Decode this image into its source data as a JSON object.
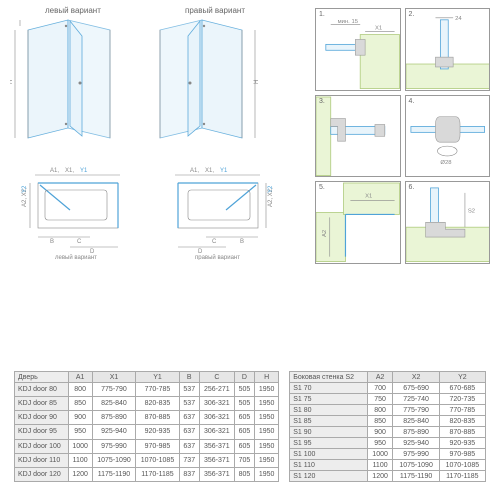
{
  "labels": {
    "left_variant": "левый вариант",
    "right_variant": "правый вариант",
    "dim_A1": "A1",
    "dim_X1": "X1",
    "dim_Y1": "Y1",
    "dim_A2": "A2",
    "dim_X2": "X2",
    "dim_Y2": "Y2",
    "dim_B": "B",
    "dim_C": "C",
    "dim_D": "D",
    "dim_H": "H",
    "detail1": "1.",
    "detail2": "2.",
    "detail3": "3.",
    "detail4": "4.",
    "detail5": "5.",
    "detail6": "6.",
    "min15": "мин. 15",
    "d24": "24",
    "d28": "Ø28"
  },
  "table1": {
    "headers": [
      "Дверь",
      "A1",
      "X1",
      "Y1",
      "B",
      "C",
      "D",
      "H"
    ],
    "rows": [
      [
        "KDJ door 80",
        "800",
        "775-790",
        "770-785",
        "537",
        "256-271",
        "505",
        "1950"
      ],
      [
        "KDJ door 85",
        "850",
        "825-840",
        "820-835",
        "537",
        "306-321",
        "505",
        "1950"
      ],
      [
        "KDJ door 90",
        "900",
        "875-890",
        "870-885",
        "637",
        "306-321",
        "605",
        "1950"
      ],
      [
        "KDJ door 95",
        "950",
        "925-940",
        "920-935",
        "637",
        "306-321",
        "605",
        "1950"
      ],
      [
        "KDJ door 100",
        "1000",
        "975-990",
        "970-985",
        "637",
        "356-371",
        "605",
        "1950"
      ],
      [
        "KDJ door 110",
        "1100",
        "1075-1090",
        "1070-1085",
        "737",
        "356-371",
        "705",
        "1950"
      ],
      [
        "KDJ door 120",
        "1200",
        "1175-1190",
        "1170-1185",
        "837",
        "356-371",
        "805",
        "1950"
      ]
    ]
  },
  "table2": {
    "headers": [
      "Боковая стенка S2",
      "A2",
      "X2",
      "Y2"
    ],
    "rows": [
      [
        "S1 70",
        "700",
        "675-690",
        "670-685"
      ],
      [
        "S1 75",
        "750",
        "725-740",
        "720-735"
      ],
      [
        "S1 80",
        "800",
        "775-790",
        "770-785"
      ],
      [
        "S1 85",
        "850",
        "825-840",
        "820-835"
      ],
      [
        "S1 90",
        "900",
        "875-890",
        "870-885"
      ],
      [
        "S1 95",
        "950",
        "925-940",
        "920-935"
      ],
      [
        "S1 100",
        "1000",
        "975-990",
        "970-985"
      ],
      [
        "S1 110",
        "1100",
        "1075-1090",
        "1070-1085"
      ],
      [
        "S1 120",
        "1200",
        "1175-1190",
        "1170-1185"
      ]
    ]
  },
  "colors": {
    "glass": "#e8f4fb",
    "glass_stroke": "#4fa3d8",
    "wall": "#eaf5d6",
    "gray": "#d9d9d9",
    "line": "#888"
  }
}
